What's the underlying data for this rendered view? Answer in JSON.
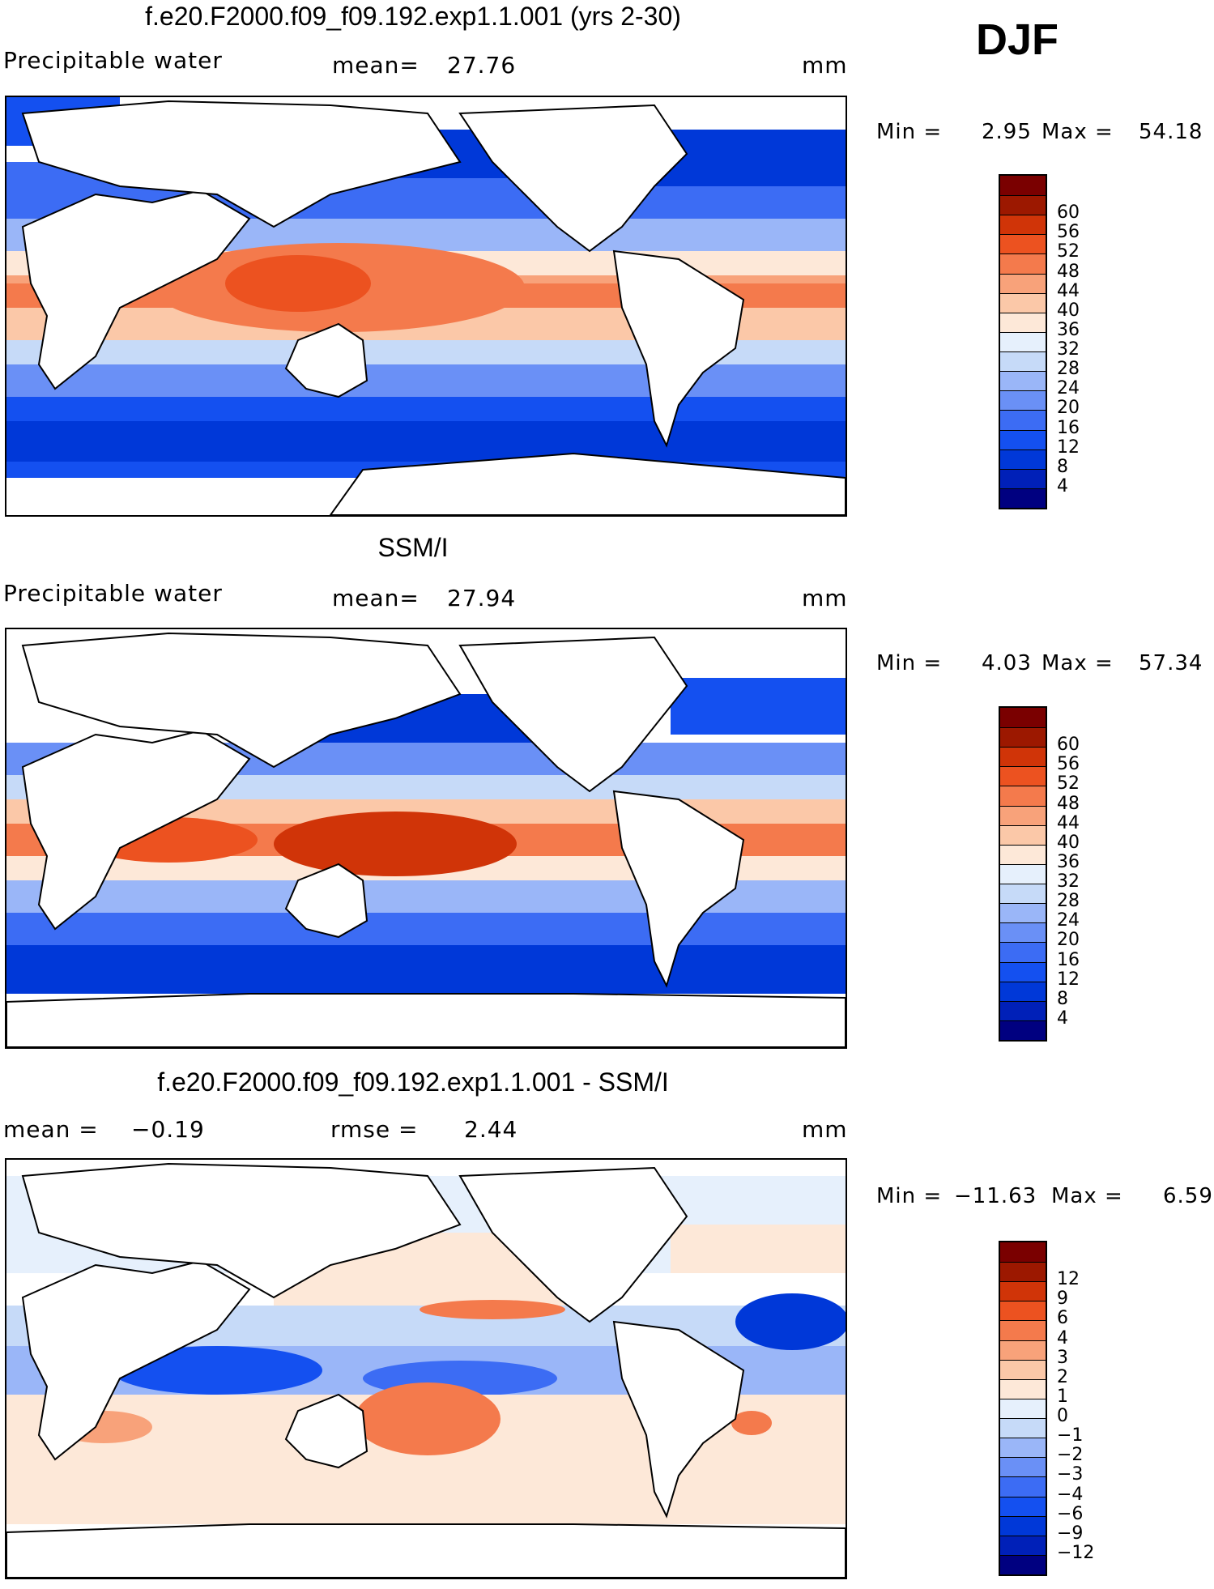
{
  "season": "DJF",
  "panels": [
    {
      "title": "f.e20.F2000.f09_f09.192.exp1.1.001 (yrs 2-30)",
      "left_text": "Precipitable water",
      "mid_label": "mean=",
      "mid_value": "27.76",
      "mid2_label": "",
      "mid2_value": "",
      "units": "mm",
      "min_label": "Min =",
      "min_value": "2.95",
      "max_label": "Max =",
      "max_value": "54.18",
      "scale": [
        "4",
        "8",
        "12",
        "16",
        "20",
        "24",
        "28",
        "32",
        "36",
        "40",
        "44",
        "48",
        "52",
        "56",
        "60"
      ],
      "colors": [
        "#000080",
        "#0020b8",
        "#0038d8",
        "#1450f0",
        "#3c6cf4",
        "#6a90f6",
        "#9ab6f8",
        "#c6daf8",
        "#e6f0fc",
        "#fde8d8",
        "#fbc8a8",
        "#f8a27a",
        "#f47a4c",
        "#ec5220",
        "#d03408",
        "#9c1800",
        "#7a0000"
      ]
    },
    {
      "title": "SSM/I",
      "left_text": "Precipitable water",
      "mid_label": "mean=",
      "mid_value": "27.94",
      "mid2_label": "",
      "mid2_value": "",
      "units": "mm",
      "min_label": "Min =",
      "min_value": "4.03",
      "max_label": "Max =",
      "max_value": "57.34",
      "scale": [
        "4",
        "8",
        "12",
        "16",
        "20",
        "24",
        "28",
        "32",
        "36",
        "40",
        "44",
        "48",
        "52",
        "56",
        "60"
      ],
      "colors": [
        "#000080",
        "#0020b8",
        "#0038d8",
        "#1450f0",
        "#3c6cf4",
        "#6a90f6",
        "#9ab6f8",
        "#c6daf8",
        "#e6f0fc",
        "#fde8d8",
        "#fbc8a8",
        "#f8a27a",
        "#f47a4c",
        "#ec5220",
        "#d03408",
        "#9c1800",
        "#7a0000"
      ]
    },
    {
      "title": "f.e20.F2000.f09_f09.192.exp1.1.001 - SSM/I",
      "left_text": "mean =",
      "mid_label": "",
      "mid_value": "−0.19",
      "mid2_label": "rmse =",
      "mid2_value": "2.44",
      "units": "mm",
      "min_label": "Min =",
      "min_value": "−11.63",
      "max_label": "Max =",
      "max_value": "6.59",
      "scale": [
        "−12",
        "−9",
        "−6",
        "−4",
        "−3",
        "−2",
        "−1",
        "0",
        "1",
        "2",
        "3",
        "4",
        "6",
        "9",
        "12"
      ],
      "colors": [
        "#000080",
        "#0020b8",
        "#0038d8",
        "#1450f0",
        "#3c6cf4",
        "#6a90f6",
        "#9ab6f8",
        "#c6daf8",
        "#e6f0fc",
        "#fde8d8",
        "#fbc8a8",
        "#f8a27a",
        "#f47a4c",
        "#ec5220",
        "#d03408",
        "#9c1800",
        "#7a0000"
      ]
    }
  ]
}
